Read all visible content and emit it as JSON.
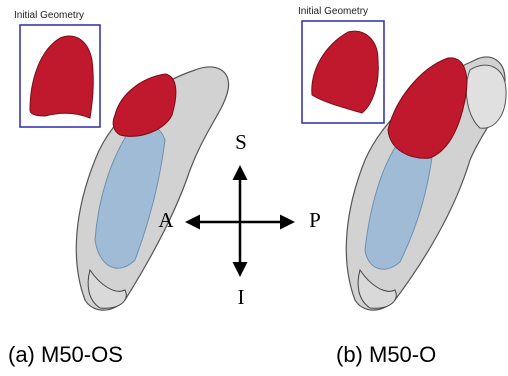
{
  "panels": [
    {
      "inset_label": "Initial Geometry",
      "caption": "(a) M50-OS"
    },
    {
      "inset_label": "Initial Geometry",
      "caption": "(b) M50-O"
    }
  ],
  "axes": {
    "superior": "S",
    "inferior": "I",
    "anterior": "A",
    "posterior": "P"
  }
}
